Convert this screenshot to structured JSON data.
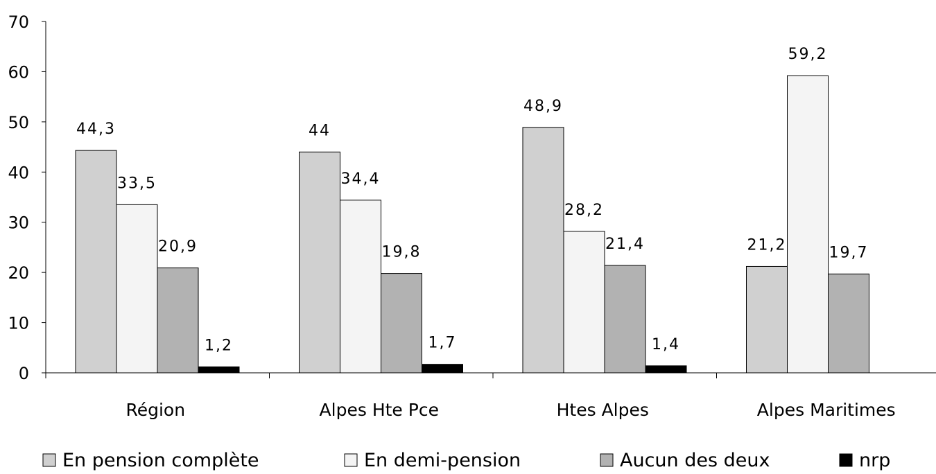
{
  "chart_data": {
    "type": "bar",
    "title": "",
    "xlabel": "",
    "ylabel": "",
    "ylim": [
      0,
      70
    ],
    "yticks": [
      0,
      10,
      20,
      30,
      40,
      50,
      60,
      70
    ],
    "grid": false,
    "legend_position": "bottom",
    "categories": [
      "Région",
      "Alpes Hte Pce",
      "Htes Alpes",
      "Alpes Maritimes"
    ],
    "series": [
      {
        "name": "En pension complète",
        "color": "#d0d0d0",
        "values": [
          44.3,
          44,
          48.9,
          21.2
        ],
        "labels": [
          "44,3",
          "44",
          "48,9",
          "21,2"
        ]
      },
      {
        "name": "En demi-pension",
        "color": "#f4f4f4",
        "values": [
          33.5,
          34.4,
          28.2,
          59.2
        ],
        "labels": [
          "33,5",
          "34,4",
          "28,2",
          "59,2"
        ]
      },
      {
        "name": "Aucun des deux",
        "color": "#b2b2b2",
        "values": [
          20.9,
          19.8,
          21.4,
          19.7
        ],
        "labels": [
          "20,9",
          "19,8",
          "21,4",
          "19,7"
        ]
      },
      {
        "name": "nrp",
        "color": "#000000",
        "values": [
          1.2,
          1.7,
          1.4,
          null
        ],
        "labels": [
          "1,2",
          "1,7",
          "1,4",
          null
        ]
      }
    ]
  }
}
